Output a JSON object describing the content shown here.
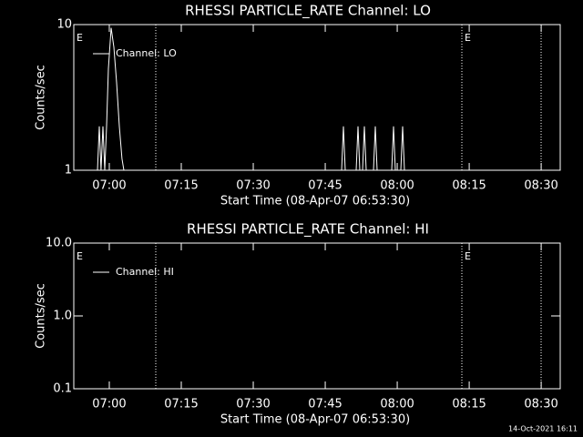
{
  "chart_data": [
    {
      "type": "line",
      "title": "RHESSI PARTICLE_RATE Channel: LO",
      "xlabel": "Start Time (08-Apr-07 06:53:30)",
      "ylabel": "Counts/sec",
      "log_y": true,
      "color": "#ffffff",
      "legend": "upper left",
      "xlim": [
        "06:52:36",
        "08:33:58"
      ],
      "xticks": [
        "07:00",
        "07:15",
        "07:30",
        "07:45",
        "08:00",
        "08:15",
        "08:30"
      ],
      "ylim": [
        1,
        10
      ],
      "yticks": [
        1,
        10
      ],
      "vlines": [
        "07:09:41",
        "08:13:28",
        "08:29:59"
      ],
      "annotations": [
        {
          "text": "E",
          "x": "06:52:36"
        },
        {
          "text": "E",
          "x": "08:13:28"
        }
      ],
      "series": [
        {
          "name": "Channel: LO",
          "color": "#ffffff",
          "x": [
            "06:57:32",
            "06:57:55",
            "06:58:17",
            "06:58:40",
            "06:59:03",
            "06:59:26",
            "06:59:49",
            "07:00:23",
            "07:00:57",
            "07:01:31",
            "07:02:05",
            "07:02:39",
            "07:03:02",
            "07:48:24",
            "07:48:47",
            "07:49:10",
            "07:51:27",
            "07:51:49",
            "07:52:12",
            "07:52:46",
            "07:53:09",
            "07:53:32",
            "07:55:03",
            "07:55:26",
            "07:55:49",
            "07:58:51",
            "07:59:14",
            "07:59:37",
            "08:00:45",
            "08:01:08",
            "08:01:30"
          ],
          "values": [
            1,
            2,
            1,
            2,
            1,
            2,
            5,
            9.5,
            7,
            4,
            2,
            1.2,
            1,
            1,
            2,
            1,
            1,
            2,
            1,
            1,
            2,
            1,
            1,
            2,
            1,
            1,
            2,
            1,
            1,
            2,
            1
          ]
        }
      ]
    },
    {
      "type": "line",
      "title": "RHESSI PARTICLE_RATE Channel: HI",
      "xlabel": "Start Time (08-Apr-07 06:53:30)",
      "ylabel": "Counts/sec",
      "log_y": true,
      "color": "#ffffff",
      "legend": "upper left",
      "xlim": [
        "06:52:36",
        "08:33:58"
      ],
      "xticks": [
        "07:00",
        "07:15",
        "07:30",
        "07:45",
        "08:00",
        "08:15",
        "08:30"
      ],
      "ylim": [
        0.1,
        10
      ],
      "yticks": [
        {
          "value": 0.1,
          "label": "0.1"
        },
        {
          "value": 1,
          "label": "1.0"
        },
        {
          "value": 10,
          "label": "10.0"
        }
      ],
      "vlines": [
        "07:09:41",
        "08:13:28",
        "08:29:59"
      ],
      "annotations": [
        {
          "text": "E",
          "x": "06:52:36"
        },
        {
          "text": "E",
          "x": "08:13:28"
        }
      ],
      "series": [
        {
          "name": "Channel: HI",
          "color": "#ffffff",
          "x": [],
          "values": []
        }
      ]
    }
  ],
  "footer": "14-Oct-2021 16:11"
}
